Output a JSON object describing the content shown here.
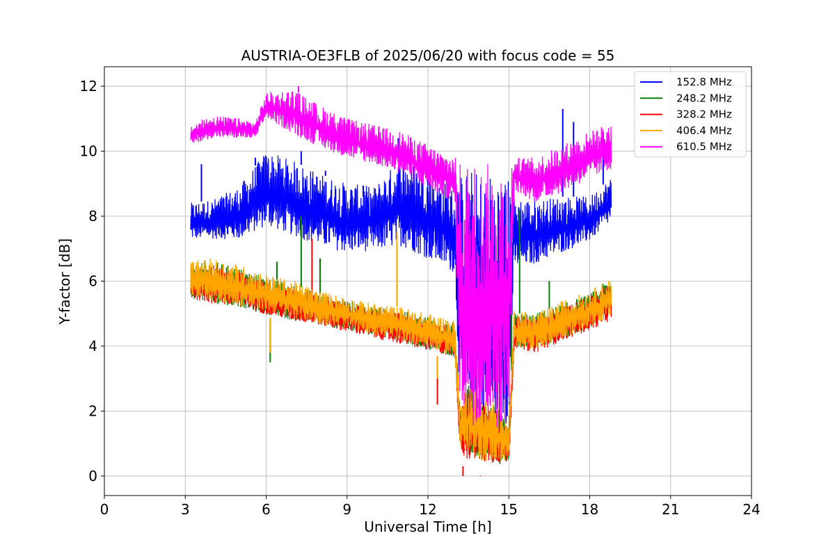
{
  "chart_data": {
    "type": "line",
    "title": "AUSTRIA-OE3FLB of 2025/06/20 with focus code = 55",
    "xlabel": "Universal Time [h]",
    "ylabel": "Y-factor [dB]",
    "xlim": [
      0,
      24
    ],
    "ylim": [
      -0.6,
      12.6
    ],
    "x_ticks": [
      0,
      3,
      6,
      9,
      12,
      15,
      18,
      21,
      24
    ],
    "x_tick_labels": [
      "0",
      "3",
      "6",
      "9",
      "12",
      "15",
      "18",
      "21",
      "24"
    ],
    "y_ticks": [
      0,
      2,
      4,
      6,
      8,
      10,
      12
    ],
    "y_tick_labels": [
      "0",
      "2",
      "4",
      "6",
      "8",
      "10",
      "12"
    ],
    "grid": true,
    "legend_position": "top-right",
    "series": [
      {
        "name": "152.8 MHz",
        "color": "#0000ff",
        "x": [
          3.2,
          4,
          5,
          6,
          7,
          8,
          9,
          10,
          11,
          12,
          13,
          13.2,
          13.5,
          14,
          14.5,
          15,
          15.2,
          16,
          17,
          18,
          18.8
        ],
        "low": [
          7.1,
          7.1,
          7.0,
          7.3,
          7.0,
          6.7,
          6.5,
          6.6,
          6.6,
          6.2,
          5.8,
          0.5,
          0.3,
          0.2,
          0.2,
          0.3,
          6.0,
          6.2,
          6.6,
          7.0,
          7.6
        ],
        "high": [
          8.4,
          8.5,
          8.9,
          10.0,
          9.7,
          9.3,
          9.0,
          8.9,
          9.8,
          9.5,
          8.8,
          9.3,
          9.5,
          9.3,
          9.4,
          9.2,
          8.6,
          8.5,
          8.6,
          8.6,
          9.2
        ],
        "spikes": [
          [
            3.6,
            9.6
          ],
          [
            5.6,
            9.8
          ],
          [
            6.0,
            10.0
          ],
          [
            7.3,
            10.0
          ],
          [
            8.2,
            9.4
          ],
          [
            9.6,
            8.6
          ],
          [
            10.9,
            10.4
          ],
          [
            17.0,
            11.3
          ],
          [
            17.4,
            10.9
          ],
          [
            18.5,
            10.6
          ]
        ]
      },
      {
        "name": "248.2 MHz",
        "color": "#008000",
        "x": [
          3.2,
          4,
          5,
          6,
          7,
          8,
          9,
          10,
          11,
          12,
          13,
          13.2,
          13.5,
          14,
          14.5,
          15,
          15.2,
          16,
          17,
          18,
          18.8
        ],
        "low": [
          5.3,
          5.1,
          5.0,
          4.8,
          4.6,
          4.5,
          4.3,
          4.2,
          4.0,
          3.7,
          3.5,
          0.5,
          0.3,
          0.1,
          0.1,
          0.1,
          3.8,
          3.7,
          4.0,
          4.4,
          4.7
        ],
        "high": [
          6.5,
          6.6,
          6.4,
          6.1,
          5.9,
          5.6,
          5.4,
          5.2,
          5.1,
          4.9,
          4.7,
          2.0,
          2.8,
          2.4,
          2.2,
          1.5,
          5.0,
          5.0,
          5.3,
          5.6,
          6.1
        ],
        "spikes": [
          [
            6.15,
            3.5
          ],
          [
            6.4,
            6.6
          ],
          [
            7.3,
            8.0
          ],
          [
            8.0,
            6.7
          ],
          [
            15.1,
            8.0
          ],
          [
            15.4,
            8.2
          ],
          [
            16.5,
            6.0
          ]
        ]
      },
      {
        "name": "328.2 MHz",
        "color": "#ff0000",
        "x": [
          3.2,
          4,
          5,
          6,
          7,
          8,
          9,
          10,
          11,
          12,
          13,
          13.2,
          13.5,
          14,
          14.5,
          15,
          15.2,
          16,
          17,
          18,
          18.8
        ],
        "low": [
          5.3,
          5.1,
          5.0,
          4.8,
          4.6,
          4.5,
          4.3,
          4.1,
          3.9,
          3.7,
          3.5,
          0.4,
          0.1,
          0.1,
          0.1,
          0.2,
          3.8,
          3.6,
          4.0,
          4.3,
          4.6
        ],
        "high": [
          6.4,
          6.5,
          6.3,
          6.0,
          5.8,
          5.5,
          5.3,
          5.1,
          5.0,
          4.8,
          4.6,
          2.0,
          2.7,
          2.3,
          2.1,
          1.4,
          4.9,
          4.9,
          5.2,
          5.5,
          6.0
        ],
        "spikes": [
          [
            7.7,
            7.3
          ],
          [
            12.35,
            2.2
          ],
          [
            13.3,
            0.0
          ]
        ]
      },
      {
        "name": "406.4 MHz",
        "color": "#ffa500",
        "x": [
          3.2,
          4,
          5,
          6,
          7,
          8,
          9,
          10,
          11,
          12,
          13,
          13.2,
          13.5,
          14,
          14.5,
          15,
          15.2,
          16,
          17,
          18,
          18.8
        ],
        "low": [
          5.4,
          5.2,
          5.0,
          4.9,
          4.7,
          4.5,
          4.4,
          4.2,
          4.0,
          3.8,
          3.5,
          0.5,
          0.3,
          0.1,
          0.1,
          0.3,
          3.8,
          3.7,
          4.0,
          4.4,
          4.7
        ],
        "high": [
          6.6,
          6.7,
          6.5,
          6.2,
          6.0,
          5.7,
          5.5,
          5.3,
          5.2,
          5.0,
          4.8,
          2.2,
          3.0,
          2.5,
          2.3,
          1.5,
          5.1,
          5.0,
          5.4,
          5.7,
          6.1
        ],
        "spikes": [
          [
            6.15,
            3.8
          ],
          [
            10.85,
            7.5
          ],
          [
            12.35,
            3.0
          ]
        ]
      },
      {
        "name": "610.5 MHz",
        "color": "#ff00ff",
        "x": [
          3.2,
          4,
          5,
          5.6,
          6,
          7,
          8,
          9,
          10,
          11,
          12,
          13,
          13.2,
          13.5,
          14,
          14.5,
          15,
          15.2,
          16,
          17,
          18,
          18.8
        ],
        "low": [
          10.1,
          10.3,
          10.3,
          10.3,
          10.9,
          10.3,
          9.9,
          9.6,
          9.4,
          9.1,
          8.6,
          8.2,
          0.5,
          0.2,
          0.0,
          0.0,
          0.3,
          8.6,
          8.2,
          8.5,
          8.9,
          9.2
        ],
        "high": [
          10.8,
          11.1,
          11.0,
          10.9,
          11.8,
          11.9,
          11.4,
          11.0,
          10.8,
          10.6,
          10.2,
          9.8,
          9.7,
          9.8,
          9.6,
          9.7,
          9.6,
          9.8,
          9.8,
          10.2,
          10.6,
          10.9
        ],
        "spikes": [
          [
            7.2,
            12.0
          ],
          [
            13.95,
            0.0
          ]
        ]
      }
    ]
  }
}
